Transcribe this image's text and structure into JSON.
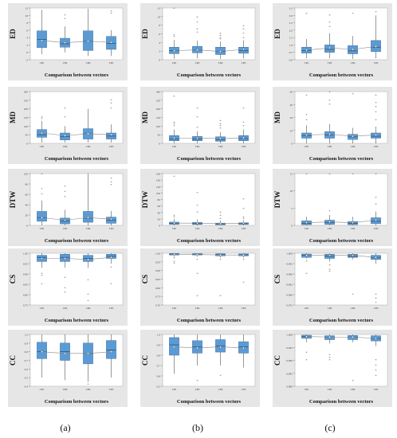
{
  "columns": [
    "(a)",
    "(b)",
    "(c)"
  ],
  "categories": [
    "LB1",
    "LB2",
    "LB4",
    "LB5"
  ],
  "xlabel": "Comparison between vectors",
  "chart_data": [
    {
      "type": "box",
      "column": "(a)",
      "ylabel": "ED",
      "ylim": [
        -2,
        12
      ],
      "yticks": [
        "-2",
        "0",
        "2",
        "4",
        "6",
        "8",
        "10",
        "12"
      ],
      "boxes": [
        {
          "q1": 1.3,
          "median": 3.5,
          "q3": 5.8,
          "wlo": -0.5,
          "whi": 11.5,
          "mean": 3.2,
          "outliers": []
        },
        {
          "q1": 1.4,
          "median": 2.3,
          "q3": 3.8,
          "wlo": 0,
          "whi": 7,
          "mean": 2.6,
          "outliers": [
            9,
            10
          ]
        },
        {
          "q1": 0.5,
          "median": 3,
          "q3": 5.8,
          "wlo": -1,
          "whi": 11.8,
          "mean": 3,
          "outliers": []
        },
        {
          "q1": 0.8,
          "median": 2.4,
          "q3": 4.3,
          "wlo": -1,
          "whi": 6,
          "mean": 2.7,
          "outliers": [
            10.5,
            11
          ]
        }
      ]
    },
    {
      "type": "box",
      "column": "(b)",
      "ylabel": "ED",
      "ylim": [
        0,
        12
      ],
      "yticks": [
        "0",
        "2",
        "4",
        "6",
        "8",
        "10",
        "12"
      ],
      "boxes": [
        {
          "q1": 1.4,
          "median": 2.1,
          "q3": 2.9,
          "wlo": 0.2,
          "whi": 4.6,
          "mean": 2.1,
          "outliers": [
            5.3,
            5.6,
            12
          ]
        },
        {
          "q1": 1.6,
          "median": 2.3,
          "q3": 3.1,
          "wlo": 0.3,
          "whi": 4.4,
          "mean": 2.3,
          "outliers": [
            6.3,
            7,
            8.6,
            9.8
          ]
        },
        {
          "q1": 1.2,
          "median": 1.9,
          "q3": 2.9,
          "wlo": 0.2,
          "whi": 4.2,
          "mean": 1.9,
          "outliers": [
            4.7,
            5,
            5.5,
            6
          ]
        },
        {
          "q1": 1.5,
          "median": 2.1,
          "q3": 2.9,
          "wlo": 0.3,
          "whi": 4.5,
          "mean": 2.4,
          "outliers": [
            5,
            6,
            7,
            7.8
          ]
        }
      ]
    },
    {
      "type": "box",
      "column": "(c)",
      "ylabel": "ED",
      "ylim": [
        0,
        3.5
      ],
      "yticks": [
        "0.0",
        "0.5",
        "1.0",
        "1.5",
        "2.0",
        "2.5",
        "3.0",
        "3.5"
      ],
      "boxes": [
        {
          "q1": 0.45,
          "median": 0.62,
          "q3": 0.85,
          "wlo": 0.1,
          "whi": 1.4,
          "mean": 0.65,
          "outliers": [
            3.1
          ]
        },
        {
          "q1": 0.5,
          "median": 0.7,
          "q3": 1,
          "wlo": 0.1,
          "whi": 1.8,
          "mean": 0.8,
          "outliers": [
            2.2,
            2.5,
            3
          ]
        },
        {
          "q1": 0.4,
          "median": 0.6,
          "q3": 0.95,
          "wlo": 0.05,
          "whi": 1.6,
          "mean": 0.7,
          "outliers": [
            3.1
          ]
        },
        {
          "q1": 0.55,
          "median": 0.85,
          "q3": 1.3,
          "wlo": 0.1,
          "whi": 3,
          "mean": 0.9,
          "outliers": [
            3.2
          ]
        }
      ]
    },
    {
      "type": "box",
      "column": "(a)",
      "ylabel": "MD",
      "ylim": [
        0,
        300
      ],
      "yticks": [
        "0",
        "50",
        "100",
        "150",
        "200",
        "250",
        "300"
      ],
      "boxes": [
        {
          "q1": 35,
          "median": 50,
          "q3": 80,
          "wlo": 5,
          "whi": 130,
          "mean": 60,
          "outliers": [
            140,
            150
          ]
        },
        {
          "q1": 20,
          "median": 40,
          "q3": 60,
          "wlo": 5,
          "whi": 100,
          "mean": 45,
          "outliers": [
            150,
            200
          ]
        },
        {
          "q1": 25,
          "median": 55,
          "q3": 85,
          "wlo": 5,
          "whi": 200,
          "mean": 55,
          "outliers": []
        },
        {
          "q1": 25,
          "median": 42,
          "q3": 60,
          "wlo": 5,
          "whi": 110,
          "mean": 50,
          "outliers": [
            200,
            230,
            250
          ]
        }
      ]
    },
    {
      "type": "box",
      "column": "(b)",
      "ylabel": "MD",
      "ylim": [
        0,
        300
      ],
      "yticks": [
        "0",
        "50",
        "100",
        "150",
        "200",
        "250",
        "300"
      ],
      "boxes": [
        {
          "q1": 15,
          "median": 25,
          "q3": 45,
          "wlo": 0,
          "whi": 80,
          "mean": 30,
          "outliers": [
            100,
            110,
            120,
            270
          ]
        },
        {
          "q1": 15,
          "median": 25,
          "q3": 40,
          "wlo": 0,
          "whi": 70,
          "mean": 30,
          "outliers": [
            90,
            150,
            200
          ]
        },
        {
          "q1": 12,
          "median": 22,
          "q3": 38,
          "wlo": 0,
          "whi": 65,
          "mean": 28,
          "outliers": [
            85,
            100,
            110,
            130
          ]
        },
        {
          "q1": 15,
          "median": 28,
          "q3": 45,
          "wlo": 0,
          "whi": 80,
          "mean": 32,
          "outliers": [
            100,
            120,
            200
          ]
        }
      ]
    },
    {
      "type": "box",
      "column": "(c)",
      "ylabel": "MD",
      "ylim": [
        0,
        40
      ],
      "yticks": [
        "0",
        "10",
        "20",
        "30",
        "40"
      ],
      "boxes": [
        {
          "q1": 4,
          "median": 6,
          "q3": 8,
          "wlo": 0,
          "whi": 14,
          "mean": 6.5,
          "outliers": [
            18,
            22,
            37
          ]
        },
        {
          "q1": 4,
          "median": 6.5,
          "q3": 9,
          "wlo": 0,
          "whi": 15,
          "mean": 7,
          "outliers": [
            30,
            33,
            40
          ]
        },
        {
          "q1": 3,
          "median": 5,
          "q3": 7,
          "wlo": 0,
          "whi": 12,
          "mean": 5.5,
          "outliers": [
            38
          ]
        },
        {
          "q1": 4,
          "median": 5.5,
          "q3": 8,
          "wlo": 0,
          "whi": 13,
          "mean": 6.5,
          "outliers": [
            18,
            24,
            28,
            31,
            37
          ]
        }
      ]
    },
    {
      "type": "box",
      "column": "(a)",
      "ylabel": "DTW",
      "ylim": [
        0,
        100
      ],
      "yticks": [
        "0",
        "20",
        "40",
        "60",
        "80",
        "100"
      ],
      "boxes": [
        {
          "q1": 8,
          "median": 15,
          "q3": 27,
          "wlo": 0,
          "whi": 48,
          "mean": 15,
          "outliers": [
            60,
            70,
            100
          ]
        },
        {
          "q1": 3,
          "median": 8,
          "q3": 14,
          "wlo": 0,
          "whi": 30,
          "mean": 10,
          "outliers": [
            55,
            65,
            75
          ]
        },
        {
          "q1": 6,
          "median": 14,
          "q3": 27,
          "wlo": 0,
          "whi": 100,
          "mean": 15,
          "outliers": []
        },
        {
          "q1": 4,
          "median": 10,
          "q3": 16,
          "wlo": 0,
          "whi": 28,
          "mean": 12,
          "outliers": [
            78,
            83,
            90
          ]
        }
      ]
    },
    {
      "type": "box",
      "column": "(b)",
      "ylabel": "DTW",
      "ylim": [
        0,
        160
      ],
      "yticks": [
        "0",
        "20",
        "40",
        "60",
        "80",
        "100",
        "120",
        "140",
        "160"
      ],
      "boxes": [
        {
          "q1": 3,
          "median": 6,
          "q3": 10,
          "wlo": 0,
          "whi": 20,
          "mean": 7,
          "outliers": [
            25,
            30,
            150
          ]
        },
        {
          "q1": 3,
          "median": 5,
          "q3": 9,
          "wlo": 0,
          "whi": 18,
          "mean": 7,
          "outliers": [
            40,
            60,
            100
          ]
        },
        {
          "q1": 2,
          "median": 4,
          "q3": 7,
          "wlo": 0,
          "whi": 15,
          "mean": 5,
          "outliers": [
            20,
            30,
            40
          ]
        },
        {
          "q1": 3,
          "median": 5,
          "q3": 8,
          "wlo": 0,
          "whi": 16,
          "mean": 7,
          "outliers": [
            20,
            25,
            50,
            80
          ]
        }
      ]
    },
    {
      "type": "box",
      "column": "(c)",
      "ylabel": "DTW",
      "ylim": [
        0,
        15
      ],
      "yticks": [
        "0",
        "5",
        "10",
        "15"
      ],
      "boxes": [
        {
          "q1": 0.2,
          "median": 0.6,
          "q3": 1.3,
          "wlo": 0,
          "whi": 2.5,
          "mean": 0.8,
          "outliers": [
            15
          ]
        },
        {
          "q1": 0.3,
          "median": 0.8,
          "q3": 1.5,
          "wlo": 0,
          "whi": 3,
          "mean": 1,
          "outliers": [
            4,
            15
          ]
        },
        {
          "q1": 0.2,
          "median": 0.6,
          "q3": 1.1,
          "wlo": 0,
          "whi": 2.5,
          "mean": 0.8,
          "outliers": [
            15
          ]
        },
        {
          "q1": 0.5,
          "median": 1.2,
          "q3": 2.2,
          "wlo": 0,
          "whi": 4,
          "mean": 1.5,
          "outliers": [
            6,
            8,
            15
          ]
        }
      ]
    },
    {
      "type": "box",
      "column": "(a)",
      "ylabel": "CS",
      "ylim": [
        0.75,
        1.0
      ],
      "yticks": [
        "0.75",
        "0.80",
        "0.85",
        "0.90",
        "0.95",
        "1.00"
      ],
      "boxes": [
        {
          "q1": 0.96,
          "median": 0.98,
          "q3": 0.99,
          "wlo": 0.93,
          "whi": 1,
          "mean": 0.975,
          "outliers": [
            0.9,
            0.89,
            0.85
          ]
        },
        {
          "q1": 0.96,
          "median": 0.98,
          "q3": 0.995,
          "wlo": 0.93,
          "whi": 1,
          "mean": 0.975,
          "outliers": [
            0.88,
            0.83,
            0.81
          ]
        },
        {
          "q1": 0.96,
          "median": 0.975,
          "q3": 0.99,
          "wlo": 0.93,
          "whi": 1,
          "mean": 0.97,
          "outliers": [
            0.87,
            0.8,
            0.77
          ]
        },
        {
          "q1": 0.975,
          "median": 0.985,
          "q3": 0.995,
          "wlo": 0.95,
          "whi": 1,
          "mean": 0.98,
          "outliers": [
            0.93,
            0.85
          ]
        }
      ]
    },
    {
      "type": "box",
      "column": "(b)",
      "ylabel": "CS",
      "ylim": [
        0.7,
        1.0
      ],
      "yticks": [
        "0.70",
        "0.75",
        "0.80",
        "0.85",
        "0.90",
        "0.95",
        "1.00"
      ],
      "boxes": [
        {
          "q1": 0.99,
          "median": 0.995,
          "q3": 0.998,
          "wlo": 0.98,
          "whi": 1,
          "mean": 0.993,
          "outliers": [
            0.97,
            0.95,
            0.94
          ]
        },
        {
          "q1": 0.99,
          "median": 0.994,
          "q3": 0.998,
          "wlo": 0.98,
          "whi": 1,
          "mean": 0.993,
          "outliers": [
            0.96,
            0.88,
            0.75
          ]
        },
        {
          "q1": 0.985,
          "median": 0.992,
          "q3": 0.997,
          "wlo": 0.975,
          "whi": 1,
          "mean": 0.99,
          "outliers": [
            0.96,
            0.75
          ]
        },
        {
          "q1": 0.985,
          "median": 0.991,
          "q3": 0.996,
          "wlo": 0.975,
          "whi": 1,
          "mean": 0.99,
          "outliers": [
            0.96,
            0.83
          ]
        }
      ]
    },
    {
      "type": "box",
      "column": "(c)",
      "ylabel": "CS",
      "ylim": [
        0.975,
        1.0
      ],
      "yticks": [
        "0.975",
        "0.980",
        "0.985",
        "0.990",
        "0.995",
        "1.000"
      ],
      "boxes": [
        {
          "q1": 0.998,
          "median": 0.999,
          "q3": 0.9996,
          "wlo": 0.9975,
          "whi": 1,
          "mean": 0.999,
          "outliers": [
            0.996,
            0.99
          ]
        },
        {
          "q1": 0.9975,
          "median": 0.9985,
          "q3": 0.9995,
          "wlo": 0.996,
          "whi": 1,
          "mean": 0.999,
          "outliers": [
            0.994,
            0.992,
            0.991
          ]
        },
        {
          "q1": 0.998,
          "median": 0.9985,
          "q3": 0.9995,
          "wlo": 0.997,
          "whi": 1,
          "mean": 0.999,
          "outliers": [
            0.98
          ]
        },
        {
          "q1": 0.997,
          "median": 0.998,
          "q3": 0.999,
          "wlo": 0.995,
          "whi": 1,
          "mean": 0.998,
          "outliers": [
            0.98,
            0.978,
            0.976
          ]
        }
      ]
    },
    {
      "type": "box",
      "column": "(a)",
      "ylabel": "CC",
      "ylim": [
        0.4,
        1.0
      ],
      "yticks": [
        "0.4",
        "0.5",
        "0.6",
        "0.7",
        "0.8",
        "0.9",
        "1.0"
      ],
      "boxes": [
        {
          "q1": 0.72,
          "median": 0.8,
          "q3": 0.91,
          "wlo": 0.5,
          "whi": 1,
          "mean": 0.8,
          "outliers": []
        },
        {
          "q1": 0.7,
          "median": 0.8,
          "q3": 0.9,
          "wlo": 0.47,
          "whi": 1,
          "mean": 0.78,
          "outliers": []
        },
        {
          "q1": 0.66,
          "median": 0.78,
          "q3": 0.9,
          "wlo": 0.45,
          "whi": 1,
          "mean": 0.78,
          "outliers": [
            0.42
          ]
        },
        {
          "q1": 0.72,
          "median": 0.82,
          "q3": 0.93,
          "wlo": 0.5,
          "whi": 1,
          "mean": 0.8,
          "outliers": []
        }
      ]
    },
    {
      "type": "box",
      "column": "(b)",
      "ylabel": "CC",
      "ylim": [
        0.5,
        1.0
      ],
      "yticks": [
        "0.5",
        "0.6",
        "0.7",
        "0.8",
        "0.9",
        "1.0"
      ],
      "boxes": [
        {
          "q1": 0.8,
          "median": 0.9,
          "q3": 0.97,
          "wlo": 0.62,
          "whi": 1,
          "mean": 0.88,
          "outliers": []
        },
        {
          "q1": 0.82,
          "median": 0.88,
          "q3": 0.94,
          "wlo": 0.7,
          "whi": 1,
          "mean": 0.87,
          "outliers": [
            0.55
          ]
        },
        {
          "q1": 0.83,
          "median": 0.89,
          "q3": 0.95,
          "wlo": 0.7,
          "whi": 1,
          "mean": 0.88,
          "outliers": [
            0.6
          ]
        },
        {
          "q1": 0.82,
          "median": 0.88,
          "q3": 0.93,
          "wlo": 0.68,
          "whi": 1,
          "mean": 0.87,
          "outliers": []
        }
      ]
    },
    {
      "type": "box",
      "column": "(c)",
      "ylabel": "CC",
      "ylim": [
        0.98,
        1.0
      ],
      "yticks": [
        "0.980",
        "0.985",
        "0.990",
        "0.995",
        "1.000"
      ],
      "boxes": [
        {
          "q1": 0.9985,
          "median": 0.9992,
          "q3": 0.9997,
          "wlo": 0.997,
          "whi": 1,
          "mean": 0.9992,
          "outliers": [
            0.993,
            0.99
          ]
        },
        {
          "q1": 0.998,
          "median": 0.999,
          "q3": 0.9995,
          "wlo": 0.9965,
          "whi": 1,
          "mean": 0.999,
          "outliers": [
            0.992,
            0.991,
            0.99
          ]
        },
        {
          "q1": 0.998,
          "median": 0.999,
          "q3": 0.9996,
          "wlo": 0.997,
          "whi": 1,
          "mean": 0.999,
          "outliers": [
            0.982
          ]
        },
        {
          "q1": 0.9975,
          "median": 0.9985,
          "q3": 0.9995,
          "wlo": 0.9955,
          "whi": 1,
          "mean": 0.9985,
          "outliers": [
            0.99,
            0.988,
            0.986,
            0.984
          ]
        }
      ]
    }
  ]
}
